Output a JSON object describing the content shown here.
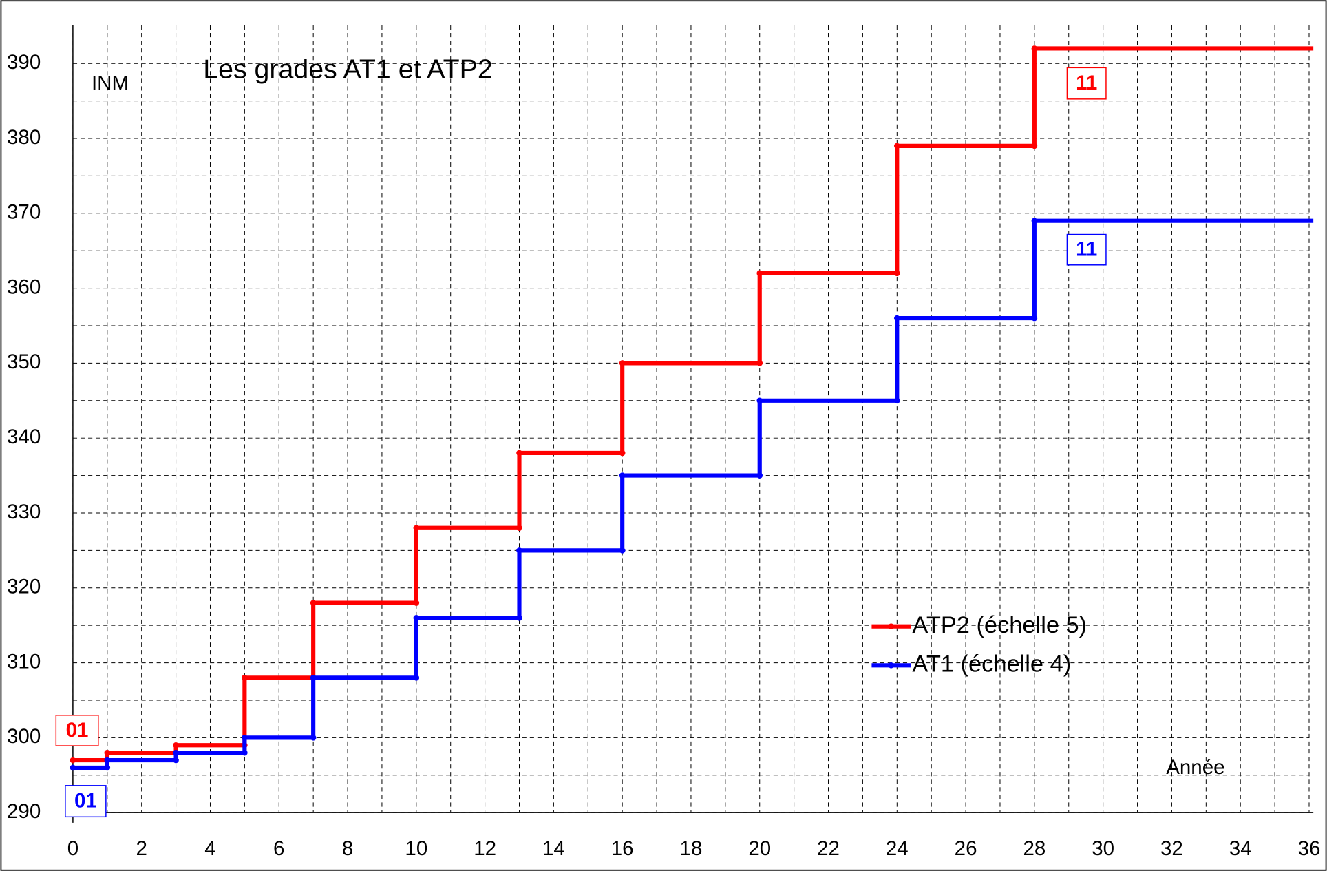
{
  "chart_data": {
    "type": "step",
    "title": "Les grades AT1 et ATP2",
    "y_label": "INM",
    "x_label": "Année",
    "series": [
      {
        "name": "ATP2 (échelle 5)",
        "color": "#ff0000",
        "x": [
          0,
          1,
          3,
          5,
          7,
          10,
          13,
          16,
          20,
          24,
          28
        ],
        "values": [
          297,
          298,
          299,
          308,
          318,
          328,
          338,
          350,
          362,
          379,
          392
        ]
      },
      {
        "name": "AT1 (échelle 4)",
        "color": "#0000ff",
        "x": [
          0,
          1,
          3,
          5,
          7,
          10,
          13,
          16,
          20,
          24,
          28
        ],
        "values": [
          296,
          297,
          298,
          300,
          308,
          316,
          325,
          335,
          345,
          356,
          369
        ]
      }
    ],
    "annotations": [
      {
        "text": "01",
        "color": "#ff0000"
      },
      {
        "text": "01",
        "color": "#0000ff"
      },
      {
        "text": "11",
        "color": "#ff0000"
      },
      {
        "text": "11",
        "color": "#0000ff"
      }
    ],
    "xlim": [
      0,
      36
    ],
    "xticks": [
      0,
      2,
      4,
      6,
      8,
      10,
      12,
      14,
      16,
      18,
      20,
      22,
      24,
      26,
      28,
      30,
      32,
      34,
      36
    ],
    "ylim": [
      290,
      390
    ],
    "yticks": [
      290,
      300,
      310,
      320,
      330,
      340,
      350,
      360,
      370,
      380,
      390
    ],
    "grid": true,
    "minor_grid": true,
    "legend": "lower right"
  }
}
